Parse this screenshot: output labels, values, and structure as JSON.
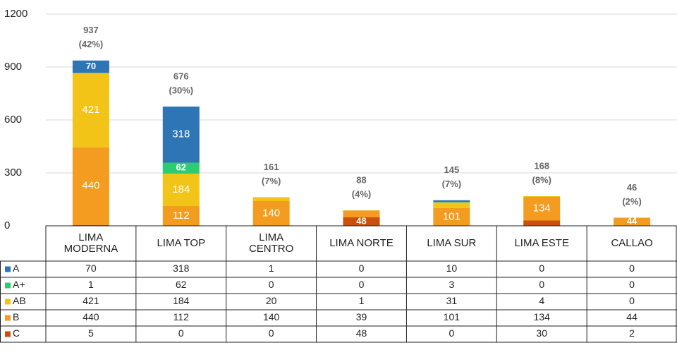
{
  "chart_data": {
    "type": "stacked_bar",
    "categories": [
      "LIMA\nMODERNA",
      "LIMA TOP",
      "LIMA\nCENTRO",
      "LIMA NORTE",
      "LIMA SUR",
      "LIMA ESTE",
      "CALLAO"
    ],
    "series": [
      {
        "name": "A",
        "color": "#2e75b6",
        "values": [
          70,
          318,
          1,
          0,
          10,
          0,
          0
        ]
      },
      {
        "name": "A+",
        "color": "#2ecc71",
        "values": [
          1,
          62,
          0,
          0,
          3,
          0,
          0
        ]
      },
      {
        "name": "AB",
        "color": "#f2c418",
        "values": [
          421,
          184,
          20,
          1,
          31,
          4,
          0
        ]
      },
      {
        "name": "B",
        "color": "#f39c1f",
        "values": [
          440,
          112,
          140,
          39,
          101,
          134,
          44
        ]
      },
      {
        "name": "C",
        "color": "#c9500f",
        "values": [
          5,
          0,
          0,
          48,
          0,
          30,
          2
        ]
      }
    ],
    "totals": [
      937,
      676,
      161,
      88,
      145,
      168,
      46
    ],
    "shares": {
      "values": [
        42,
        30,
        7,
        4,
        7,
        8,
        2
      ],
      "value_labels": [
        "(42%)",
        "(30%)",
        "(7%)",
        "(4%)",
        "(7%)",
        "(8%)",
        "(2%)"
      ]
    },
    "ylim": [
      0,
      1200
    ],
    "yticks": [
      0,
      300,
      600,
      900,
      1200
    ],
    "grid": true
  }
}
